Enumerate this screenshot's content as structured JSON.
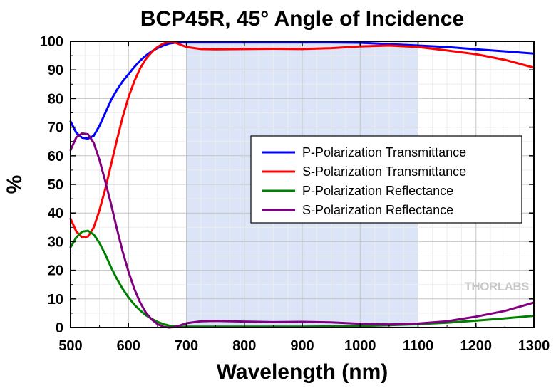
{
  "chart_data": {
    "type": "line",
    "title": "BCP45R, 45° Angle of Incidence",
    "xlabel": "Wavelength (nm)",
    "ylabel": "%",
    "xlim": [
      500,
      1300
    ],
    "ylim": [
      0,
      100
    ],
    "x_ticks": [
      "500",
      "600",
      "700",
      "800",
      "900",
      "1000",
      "1100",
      "1200",
      "1300"
    ],
    "y_ticks": [
      "0",
      "10",
      "20",
      "30",
      "40",
      "50",
      "60",
      "70",
      "80",
      "90",
      "100"
    ],
    "grid": true,
    "legend_position": "center-right",
    "highlight_band": {
      "from": 700,
      "to": 1100,
      "color": "#dce4f7"
    },
    "watermark": "THORLABS",
    "series": [
      {
        "name": "P-Polarization Transmittance",
        "color": "#0000ff",
        "points": [
          [
            500,
            72
          ],
          [
            510,
            68
          ],
          [
            520,
            66.3
          ],
          [
            530,
            66
          ],
          [
            540,
            67
          ],
          [
            550,
            70.5
          ],
          [
            560,
            75
          ],
          [
            570,
            79.5
          ],
          [
            580,
            83
          ],
          [
            590,
            86
          ],
          [
            600,
            88.5
          ],
          [
            610,
            91
          ],
          [
            620,
            93.2
          ],
          [
            630,
            95
          ],
          [
            640,
            96.5
          ],
          [
            650,
            97.6
          ],
          [
            660,
            98.5
          ],
          [
            670,
            99.2
          ],
          [
            680,
            99.5
          ],
          [
            690,
            99.6
          ],
          [
            700,
            99.6
          ],
          [
            750,
            99.6
          ],
          [
            800,
            99.6
          ],
          [
            850,
            99.6
          ],
          [
            900,
            99.6
          ],
          [
            950,
            99.6
          ],
          [
            1000,
            99.5
          ],
          [
            1050,
            99
          ],
          [
            1100,
            98.5
          ],
          [
            1150,
            98
          ],
          [
            1200,
            97.2
          ],
          [
            1250,
            96.5
          ],
          [
            1300,
            95.7
          ]
        ]
      },
      {
        "name": "S-Polarization Transmittance",
        "color": "#ff0000",
        "points": [
          [
            500,
            38
          ],
          [
            510,
            33.5
          ],
          [
            520,
            31.5
          ],
          [
            530,
            31.8
          ],
          [
            540,
            35
          ],
          [
            550,
            41
          ],
          [
            560,
            48.5
          ],
          [
            570,
            57
          ],
          [
            580,
            65.5
          ],
          [
            590,
            73.5
          ],
          [
            600,
            80.5
          ],
          [
            610,
            86
          ],
          [
            620,
            90.5
          ],
          [
            630,
            93.8
          ],
          [
            640,
            96.2
          ],
          [
            650,
            98
          ],
          [
            660,
            99.2
          ],
          [
            670,
            99.8
          ],
          [
            680,
            99.6
          ],
          [
            690,
            98.8
          ],
          [
            700,
            98
          ],
          [
            725,
            97.3
          ],
          [
            750,
            97.2
          ],
          [
            800,
            97.3
          ],
          [
            850,
            97.4
          ],
          [
            900,
            97.3
          ],
          [
            950,
            97.6
          ],
          [
            1000,
            98.2
          ],
          [
            1050,
            98.5
          ],
          [
            1100,
            98
          ],
          [
            1150,
            96.8
          ],
          [
            1200,
            95.5
          ],
          [
            1250,
            93.5
          ],
          [
            1300,
            90.8
          ]
        ]
      },
      {
        "name": "P-Polarization Reflectance",
        "color": "#008000",
        "points": [
          [
            500,
            28
          ],
          [
            510,
            31.5
          ],
          [
            520,
            33.5
          ],
          [
            530,
            33.8
          ],
          [
            540,
            32.5
          ],
          [
            550,
            29.5
          ],
          [
            560,
            25.5
          ],
          [
            570,
            21
          ],
          [
            580,
            17
          ],
          [
            590,
            13.5
          ],
          [
            600,
            10.5
          ],
          [
            610,
            8
          ],
          [
            620,
            6
          ],
          [
            630,
            4.3
          ],
          [
            640,
            3
          ],
          [
            650,
            2
          ],
          [
            660,
            1.2
          ],
          [
            670,
            0.7
          ],
          [
            680,
            0.4
          ],
          [
            690,
            0.3
          ],
          [
            700,
            0.3
          ],
          [
            750,
            0.3
          ],
          [
            800,
            0.3
          ],
          [
            850,
            0.3
          ],
          [
            900,
            0.3
          ],
          [
            950,
            0.4
          ],
          [
            1000,
            0.5
          ],
          [
            1050,
            0.8
          ],
          [
            1100,
            1.2
          ],
          [
            1150,
            1.7
          ],
          [
            1200,
            2.4
          ],
          [
            1250,
            3.2
          ],
          [
            1300,
            4.1
          ]
        ]
      },
      {
        "name": "S-Polarization Reflectance",
        "color": "#800080",
        "points": [
          [
            500,
            62
          ],
          [
            510,
            66.5
          ],
          [
            520,
            67.8
          ],
          [
            530,
            67.5
          ],
          [
            540,
            64.5
          ],
          [
            550,
            58.5
          ],
          [
            560,
            51
          ],
          [
            570,
            43
          ],
          [
            580,
            34.5
          ],
          [
            590,
            26.5
          ],
          [
            600,
            19.5
          ],
          [
            610,
            13.5
          ],
          [
            620,
            8.8
          ],
          [
            630,
            5.2
          ],
          [
            640,
            2.8
          ],
          [
            650,
            1.2
          ],
          [
            660,
            0.3
          ],
          [
            670,
            0
          ],
          [
            680,
            0.2
          ],
          [
            690,
            0.8
          ],
          [
            700,
            1.5
          ],
          [
            725,
            2.2
          ],
          [
            750,
            2.3
          ],
          [
            800,
            2.1
          ],
          [
            850,
            1.9
          ],
          [
            900,
            2
          ],
          [
            950,
            1.8
          ],
          [
            1000,
            1.3
          ],
          [
            1050,
            1.1
          ],
          [
            1100,
            1.4
          ],
          [
            1150,
            2.2
          ],
          [
            1200,
            3.8
          ],
          [
            1250,
            5.8
          ],
          [
            1300,
            8.7
          ]
        ]
      }
    ]
  }
}
